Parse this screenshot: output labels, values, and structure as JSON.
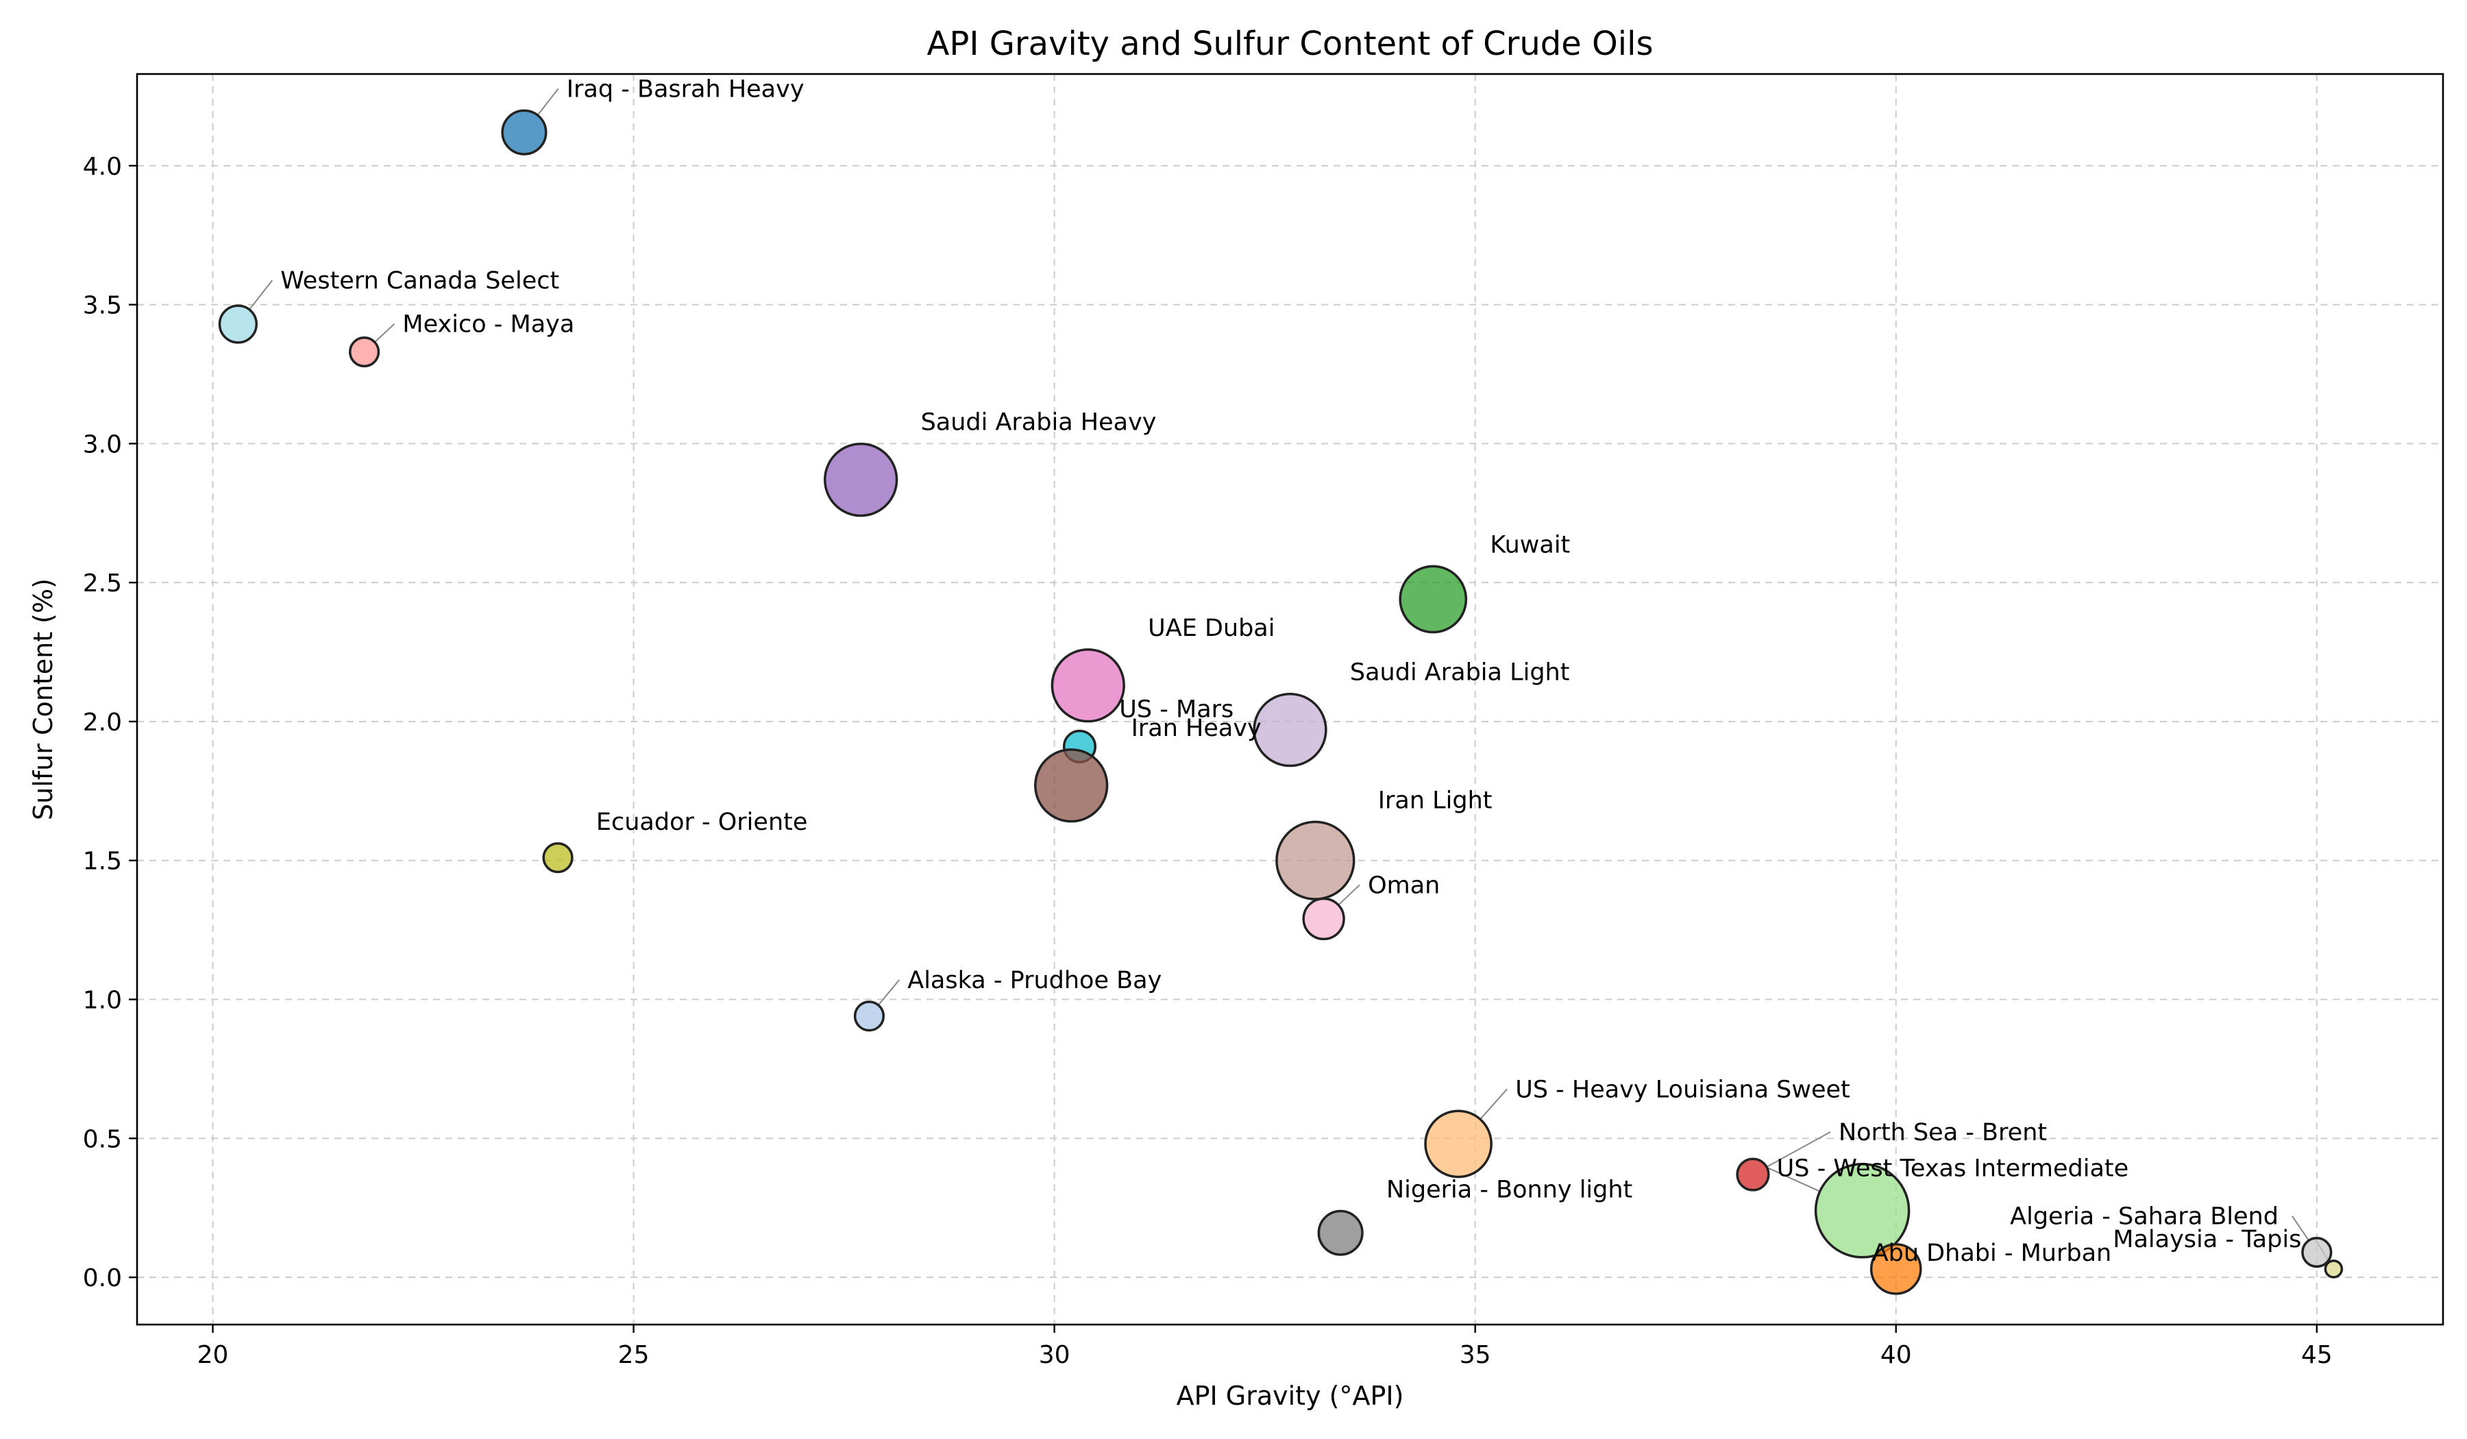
{
  "chart_data": {
    "type": "scatter",
    "title": "API Gravity and Sulfur Content of Crude Oils",
    "xlabel": "API Gravity (°API)",
    "ylabel": "Sulfur Content (%)",
    "xlim": [
      19.1,
      46.5
    ],
    "ylim": [
      -0.17,
      4.33
    ],
    "xticks": [
      20,
      25,
      30,
      35,
      40,
      45
    ],
    "yticks": [
      0.0,
      0.5,
      1.0,
      1.5,
      2.0,
      2.5,
      3.0,
      3.5,
      4.0
    ],
    "xtick_labels": [
      "20",
      "25",
      "30",
      "35",
      "40",
      "45"
    ],
    "ytick_labels": [
      "0.0",
      "0.5",
      "1.0",
      "1.5",
      "2.0",
      "2.5",
      "3.0",
      "3.5",
      "4.0"
    ],
    "grid": true,
    "marker_size_note": "relative production volume (unlabeled)",
    "points": [
      {
        "label": "Iraq - Basrah Heavy",
        "x": 23.7,
        "y": 4.12,
        "size": 3.5,
        "color": "#1f77b4",
        "label_dx": 30,
        "label_dy": -20,
        "anchor": "start",
        "leader": true
      },
      {
        "label": "Western Canada Select",
        "x": 20.3,
        "y": 3.43,
        "size": 2.5,
        "color": "#9edae5",
        "label_dx": 35,
        "label_dy": -25,
        "anchor": "start",
        "leader": true
      },
      {
        "label": "Mexico - Maya",
        "x": 21.8,
        "y": 3.33,
        "size": 1.5,
        "color": "#ff9896",
        "label_dx": 35,
        "label_dy": -8,
        "anchor": "start",
        "leader": true
      },
      {
        "label": "Saudi Arabia Heavy",
        "x": 27.7,
        "y": 2.87,
        "size": 9.5,
        "color": "#9467bd",
        "label_dx": 35,
        "label_dy": -20,
        "anchor": "start",
        "leader": false
      },
      {
        "label": "Kuwait",
        "x": 34.5,
        "y": 2.44,
        "size": 8.0,
        "color": "#2ca02c",
        "label_dx": 35,
        "label_dy": -20,
        "anchor": "start",
        "leader": false
      },
      {
        "label": "UAE Dubai",
        "x": 30.4,
        "y": 2.13,
        "size": 9.5,
        "color": "#e377c2",
        "label_dx": 35,
        "label_dy": -20,
        "anchor": "start",
        "leader": false
      },
      {
        "label": "Saudi Arabia Light",
        "x": 32.8,
        "y": 1.97,
        "size": 9.5,
        "color": "#c5b0d5",
        "label_dx": 35,
        "label_dy": -20,
        "anchor": "start",
        "leader": false
      },
      {
        "label": "US - Mars",
        "x": 30.3,
        "y": 1.91,
        "size": 1.8,
        "color": "#17becf",
        "label_dx": 35,
        "label_dy": -20,
        "anchor": "start",
        "leader": false
      },
      {
        "label": "Iran Heavy",
        "x": 30.2,
        "y": 1.77,
        "size": 9.5,
        "color": "#8c564b",
        "label_dx": 35,
        "label_dy": -20,
        "anchor": "start",
        "leader": false
      },
      {
        "label": "Ecuador - Oriente",
        "x": 24.1,
        "y": 1.51,
        "size": 1.5,
        "color": "#bcbd22",
        "label_dx": 35,
        "label_dy": -20,
        "anchor": "start",
        "leader": false
      },
      {
        "label": "Iran Light",
        "x": 33.1,
        "y": 1.5,
        "size": 11.0,
        "color": "#c49c94",
        "label_dx": 35,
        "label_dy": -20,
        "anchor": "start",
        "leader": false
      },
      {
        "label": "Oman",
        "x": 33.2,
        "y": 1.29,
        "size": 3.0,
        "color": "#f7b6d2",
        "label_dx": 35,
        "label_dy": -8,
        "anchor": "start",
        "leader": true
      },
      {
        "label": "Alaska - Prudhoe Bay",
        "x": 27.8,
        "y": 0.94,
        "size": 1.5,
        "color": "#aec7e8",
        "label_dx": 35,
        "label_dy": -20,
        "anchor": "start",
        "leader": true
      },
      {
        "label": "US - Heavy Louisiana Sweet",
        "x": 34.8,
        "y": 0.48,
        "size": 8.0,
        "color": "#ffbb78",
        "label_dx": 35,
        "label_dy": -20,
        "anchor": "start",
        "leader": true
      },
      {
        "label": "North Sea - Brent",
        "x": 38.3,
        "y": 0.37,
        "size": 1.8,
        "color": "#d62728",
        "label_dx": 35,
        "label_dy": -20,
        "anchor": "start",
        "leader": true
      },
      {
        "label": "Nigeria - Bonny light",
        "x": 33.4,
        "y": 0.16,
        "size": 3.5,
        "color": "#7f7f7f",
        "label_dx": 35,
        "label_dy": -20,
        "anchor": "start",
        "leader": false
      },
      {
        "label": "US - West Texas Intermediate",
        "x": 39.6,
        "y": 0.24,
        "size": 16.0,
        "color": "#98df8a",
        "label_dx": 35,
        "label_dy": -20,
        "anchor": "start",
        "leader": true
      },
      {
        "label": "Abu Dhabi - Murban",
        "x": 40.0,
        "y": 0.03,
        "size": 4.5,
        "color": "#ff7f0e",
        "label_dx": -35,
        "label_dy": -20,
        "anchor": "start",
        "leader": false
      },
      {
        "label": "Algeria - Sahara Blend",
        "x": 45.0,
        "y": 0.09,
        "size": 1.5,
        "color": "#c7c7c7",
        "label_dx": -35,
        "label_dy": -20,
        "anchor": "end",
        "leader": true
      },
      {
        "label": "Malaysia - Tapis",
        "x": 45.2,
        "y": 0.03,
        "size": 0.5,
        "color": "#dbdb8d",
        "label_dx": -35,
        "label_dy": -20,
        "anchor": "end",
        "leader": true
      }
    ]
  }
}
